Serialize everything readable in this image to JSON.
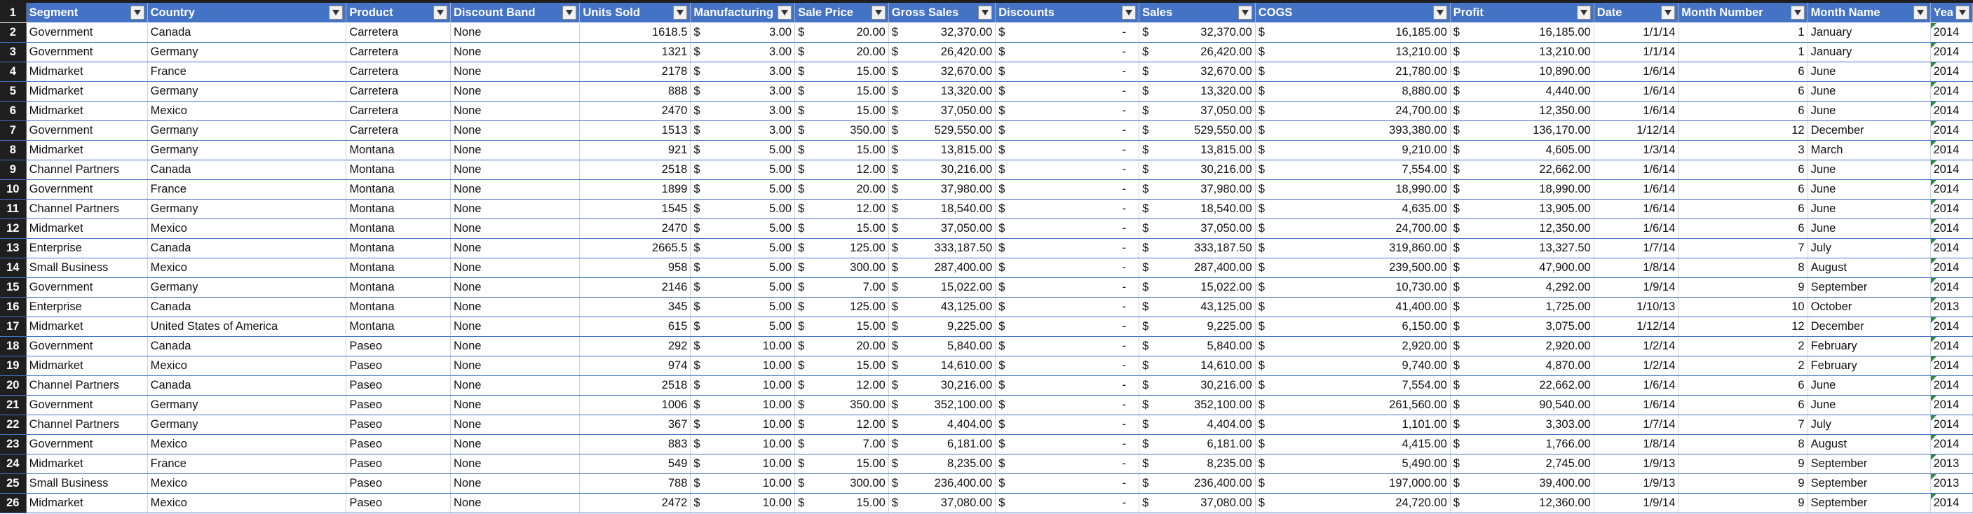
{
  "sheet": {
    "header_row_number": "1",
    "columns": [
      "Segment",
      "Country",
      "Product",
      "Discount Band",
      "Units Sold",
      "Manufacturing",
      "Sale Price",
      "Gross Sales",
      "Discounts",
      "Sales",
      "COGS",
      "Profit",
      "Date",
      "Month Number",
      "Month Name",
      "Year"
    ],
    "currency_symbol": "$",
    "rows": [
      {
        "n": "2",
        "c": [
          "Government",
          "Canada",
          "Carretera",
          "None",
          "1618.5",
          "3.00",
          "20.00",
          "32,370.00",
          "-",
          "32,370.00",
          "16,185.00",
          "16,185.00",
          "1/1/14",
          "1",
          "January",
          "2014"
        ]
      },
      {
        "n": "3",
        "c": [
          "Government",
          "Germany",
          "Carretera",
          "None",
          "1321",
          "3.00",
          "20.00",
          "26,420.00",
          "-",
          "26,420.00",
          "13,210.00",
          "13,210.00",
          "1/1/14",
          "1",
          "January",
          "2014"
        ]
      },
      {
        "n": "4",
        "c": [
          "Midmarket",
          "France",
          "Carretera",
          "None",
          "2178",
          "3.00",
          "15.00",
          "32,670.00",
          "-",
          "32,670.00",
          "21,780.00",
          "10,890.00",
          "1/6/14",
          "6",
          "June",
          "2014"
        ]
      },
      {
        "n": "5",
        "c": [
          "Midmarket",
          "Germany",
          "Carretera",
          "None",
          "888",
          "3.00",
          "15.00",
          "13,320.00",
          "-",
          "13,320.00",
          "8,880.00",
          "4,440.00",
          "1/6/14",
          "6",
          "June",
          "2014"
        ]
      },
      {
        "n": "6",
        "c": [
          "Midmarket",
          "Mexico",
          "Carretera",
          "None",
          "2470",
          "3.00",
          "15.00",
          "37,050.00",
          "-",
          "37,050.00",
          "24,700.00",
          "12,350.00",
          "1/6/14",
          "6",
          "June",
          "2014"
        ]
      },
      {
        "n": "7",
        "c": [
          "Government",
          "Germany",
          "Carretera",
          "None",
          "1513",
          "3.00",
          "350.00",
          "529,550.00",
          "-",
          "529,550.00",
          "393,380.00",
          "136,170.00",
          "1/12/14",
          "12",
          "December",
          "2014"
        ]
      },
      {
        "n": "8",
        "c": [
          "Midmarket",
          "Germany",
          "Montana",
          "None",
          "921",
          "5.00",
          "15.00",
          "13,815.00",
          "-",
          "13,815.00",
          "9,210.00",
          "4,605.00",
          "1/3/14",
          "3",
          "March",
          "2014"
        ]
      },
      {
        "n": "9",
        "c": [
          "Channel Partners",
          "Canada",
          "Montana",
          "None",
          "2518",
          "5.00",
          "12.00",
          "30,216.00",
          "-",
          "30,216.00",
          "7,554.00",
          "22,662.00",
          "1/6/14",
          "6",
          "June",
          "2014"
        ]
      },
      {
        "n": "10",
        "c": [
          "Government",
          "France",
          "Montana",
          "None",
          "1899",
          "5.00",
          "20.00",
          "37,980.00",
          "-",
          "37,980.00",
          "18,990.00",
          "18,990.00",
          "1/6/14",
          "6",
          "June",
          "2014"
        ]
      },
      {
        "n": "11",
        "c": [
          "Channel Partners",
          "Germany",
          "Montana",
          "None",
          "1545",
          "5.00",
          "12.00",
          "18,540.00",
          "-",
          "18,540.00",
          "4,635.00",
          "13,905.00",
          "1/6/14",
          "6",
          "June",
          "2014"
        ]
      },
      {
        "n": "12",
        "c": [
          "Midmarket",
          "Mexico",
          "Montana",
          "None",
          "2470",
          "5.00",
          "15.00",
          "37,050.00",
          "-",
          "37,050.00",
          "24,700.00",
          "12,350.00",
          "1/6/14",
          "6",
          "June",
          "2014"
        ]
      },
      {
        "n": "13",
        "c": [
          "Enterprise",
          "Canada",
          "Montana",
          "None",
          "2665.5",
          "5.00",
          "125.00",
          "333,187.50",
          "-",
          "333,187.50",
          "319,860.00",
          "13,327.50",
          "1/7/14",
          "7",
          "July",
          "2014"
        ]
      },
      {
        "n": "14",
        "c": [
          "Small Business",
          "Mexico",
          "Montana",
          "None",
          "958",
          "5.00",
          "300.00",
          "287,400.00",
          "-",
          "287,400.00",
          "239,500.00",
          "47,900.00",
          "1/8/14",
          "8",
          "August",
          "2014"
        ]
      },
      {
        "n": "15",
        "c": [
          "Government",
          "Germany",
          "Montana",
          "None",
          "2146",
          "5.00",
          "7.00",
          "15,022.00",
          "-",
          "15,022.00",
          "10,730.00",
          "4,292.00",
          "1/9/14",
          "9",
          "September",
          "2014"
        ]
      },
      {
        "n": "16",
        "c": [
          "Enterprise",
          "Canada",
          "Montana",
          "None",
          "345",
          "5.00",
          "125.00",
          "43,125.00",
          "-",
          "43,125.00",
          "41,400.00",
          "1,725.00",
          "1/10/13",
          "10",
          "October",
          "2013"
        ]
      },
      {
        "n": "17",
        "c": [
          "Midmarket",
          "United States of America",
          "Montana",
          "None",
          "615",
          "5.00",
          "15.00",
          "9,225.00",
          "-",
          "9,225.00",
          "6,150.00",
          "3,075.00",
          "1/12/14",
          "12",
          "December",
          "2014"
        ]
      },
      {
        "n": "18",
        "c": [
          "Government",
          "Canada",
          "Paseo",
          "None",
          "292",
          "10.00",
          "20.00",
          "5,840.00",
          "-",
          "5,840.00",
          "2,920.00",
          "2,920.00",
          "1/2/14",
          "2",
          "February",
          "2014"
        ]
      },
      {
        "n": "19",
        "c": [
          "Midmarket",
          "Mexico",
          "Paseo",
          "None",
          "974",
          "10.00",
          "15.00",
          "14,610.00",
          "-",
          "14,610.00",
          "9,740.00",
          "4,870.00",
          "1/2/14",
          "2",
          "February",
          "2014"
        ]
      },
      {
        "n": "20",
        "c": [
          "Channel Partners",
          "Canada",
          "Paseo",
          "None",
          "2518",
          "10.00",
          "12.00",
          "30,216.00",
          "-",
          "30,216.00",
          "7,554.00",
          "22,662.00",
          "1/6/14",
          "6",
          "June",
          "2014"
        ]
      },
      {
        "n": "21",
        "c": [
          "Government",
          "Germany",
          "Paseo",
          "None",
          "1006",
          "10.00",
          "350.00",
          "352,100.00",
          "-",
          "352,100.00",
          "261,560.00",
          "90,540.00",
          "1/6/14",
          "6",
          "June",
          "2014"
        ]
      },
      {
        "n": "22",
        "c": [
          "Channel Partners",
          "Germany",
          "Paseo",
          "None",
          "367",
          "10.00",
          "12.00",
          "4,404.00",
          "-",
          "4,404.00",
          "1,101.00",
          "3,303.00",
          "1/7/14",
          "7",
          "July",
          "2014"
        ]
      },
      {
        "n": "23",
        "c": [
          "Government",
          "Mexico",
          "Paseo",
          "None",
          "883",
          "10.00",
          "7.00",
          "6,181.00",
          "-",
          "6,181.00",
          "4,415.00",
          "1,766.00",
          "1/8/14",
          "8",
          "August",
          "2014"
        ]
      },
      {
        "n": "24",
        "c": [
          "Midmarket",
          "France",
          "Paseo",
          "None",
          "549",
          "10.00",
          "15.00",
          "8,235.00",
          "-",
          "8,235.00",
          "5,490.00",
          "2,745.00",
          "1/9/13",
          "9",
          "September",
          "2013"
        ]
      },
      {
        "n": "25",
        "c": [
          "Small Business",
          "Mexico",
          "Paseo",
          "None",
          "788",
          "10.00",
          "300.00",
          "236,400.00",
          "-",
          "236,400.00",
          "197,000.00",
          "39,400.00",
          "1/9/13",
          "9",
          "September",
          "2013"
        ]
      },
      {
        "n": "26",
        "c": [
          "Midmarket",
          "Mexico",
          "Paseo",
          "None",
          "2472",
          "10.00",
          "15.00",
          "37,080.00",
          "-",
          "37,080.00",
          "24,720.00",
          "12,360.00",
          "1/9/14",
          "9",
          "September",
          "2014"
        ]
      }
    ]
  },
  "colors": {
    "header_bg": "#4472c4",
    "row_border": "#4472c4",
    "rownum_bg": "#1f1f1f",
    "error_marker": "#2e8b3a"
  }
}
